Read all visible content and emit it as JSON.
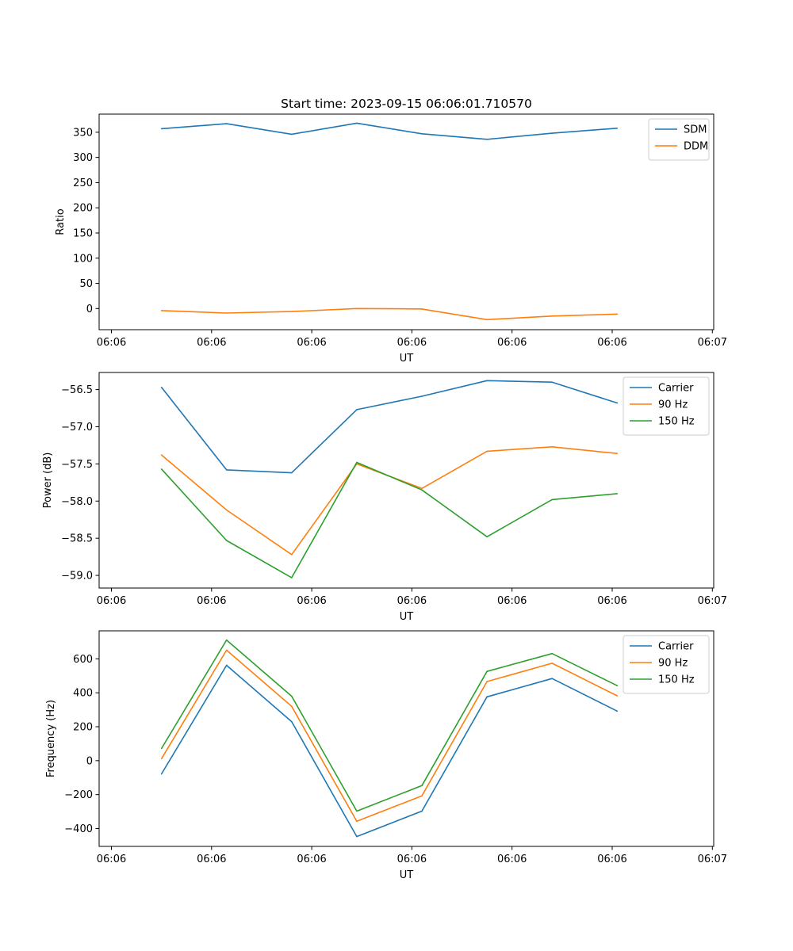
{
  "chart_data": [
    {
      "type": "line",
      "title": "Start time: 2023-09-15 06:06:01.710570",
      "xlabel": "UT",
      "ylabel": "Ratio",
      "xlim": [
        0,
        6.0
      ],
      "ylim": [
        -42,
        386
      ],
      "x": [
        0.5,
        1.15,
        1.8,
        2.45,
        3.1,
        3.75,
        4.4,
        5.05
      ],
      "x_ticks": [
        0,
        1,
        2,
        3,
        4,
        5,
        6
      ],
      "x_tick_labels": [
        "06:06",
        "06:06",
        "06:06",
        "06:06",
        "06:06",
        "06:06",
        "06:07"
      ],
      "y_ticks": [
        0,
        50,
        100,
        150,
        200,
        250,
        300,
        350
      ],
      "y_tick_labels": [
        "0",
        "50",
        "100",
        "150",
        "200",
        "250",
        "300",
        "350"
      ],
      "legend_position": "upper-right",
      "series": [
        {
          "name": "SDM",
          "color": "#1f77b4",
          "values": [
            357,
            367,
            346,
            368,
            347,
            336,
            348,
            358
          ]
        },
        {
          "name": "DDM",
          "color": "#ff7f0e",
          "values": [
            -4,
            -9,
            -6,
            0,
            -1,
            -22,
            -15,
            -11
          ]
        }
      ]
    },
    {
      "type": "line",
      "title": "",
      "xlabel": "UT",
      "ylabel": "Power (dB)",
      "xlim": [
        0,
        6.0
      ],
      "ylim": [
        -59.17,
        -56.27
      ],
      "x": [
        0.5,
        1.15,
        1.8,
        2.45,
        3.1,
        3.75,
        4.4,
        5.05
      ],
      "x_ticks": [
        0,
        1,
        2,
        3,
        4,
        5,
        6
      ],
      "x_tick_labels": [
        "06:06",
        "06:06",
        "06:06",
        "06:06",
        "06:06",
        "06:06",
        "06:07"
      ],
      "y_ticks": [
        -59.0,
        -58.5,
        -58.0,
        -57.5,
        -57.0,
        -56.5
      ],
      "y_tick_labels": [
        "−59.0",
        "−58.5",
        "−58.0",
        "−57.5",
        "−57.0",
        "−56.5"
      ],
      "legend_position": "upper-right",
      "series": [
        {
          "name": "Carrier",
          "color": "#1f77b4",
          "values": [
            -56.47,
            -57.58,
            -57.62,
            -56.77,
            -56.59,
            -56.38,
            -56.4,
            -56.68
          ]
        },
        {
          "name": "90 Hz",
          "color": "#ff7f0e",
          "values": [
            -57.38,
            -58.12,
            -58.72,
            -57.5,
            -57.83,
            -57.33,
            -57.27,
            -57.36
          ]
        },
        {
          "name": "150 Hz",
          "color": "#2ca02c",
          "values": [
            -57.57,
            -58.53,
            -59.03,
            -57.48,
            -57.85,
            -58.48,
            -57.98,
            -57.9
          ]
        }
      ]
    },
    {
      "type": "line",
      "title": "",
      "xlabel": "UT",
      "ylabel": "Frequency (Hz)",
      "xlim": [
        0,
        6.0
      ],
      "ylim": [
        -505,
        765
      ],
      "x": [
        0.5,
        1.15,
        1.8,
        2.45,
        3.1,
        3.75,
        4.4,
        5.05
      ],
      "x_ticks": [
        0,
        1,
        2,
        3,
        4,
        5,
        6
      ],
      "x_tick_labels": [
        "06:06",
        "06:06",
        "06:06",
        "06:06",
        "06:06",
        "06:06",
        "06:07"
      ],
      "y_ticks": [
        -400,
        -200,
        0,
        200,
        400,
        600
      ],
      "y_tick_labels": [
        "−400",
        "−200",
        "0",
        "200",
        "400",
        "600"
      ],
      "legend_position": "upper-right",
      "series": [
        {
          "name": "Carrier",
          "color": "#1f77b4",
          "values": [
            -78,
            562,
            230,
            -447,
            -297,
            376,
            484,
            292
          ]
        },
        {
          "name": "90 Hz",
          "color": "#ff7f0e",
          "values": [
            12,
            651,
            320,
            -357,
            -207,
            466,
            574,
            382
          ]
        },
        {
          "name": "150 Hz",
          "color": "#2ca02c",
          "values": [
            72,
            711,
            380,
            -297,
            -147,
            526,
            631,
            442
          ]
        }
      ]
    }
  ]
}
